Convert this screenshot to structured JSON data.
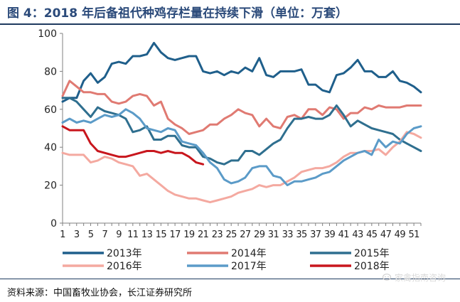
{
  "title": "图 4：2018 年后备祖代种鸡存栏量在持续下滑（单位：万套）",
  "source": "资料来源：中国畜牧业协会，长江证券研究所",
  "watermark": "家禽指南咨询",
  "chart_data": {
    "type": "line",
    "ylim": [
      0,
      100
    ],
    "yticks": [
      0,
      20,
      40,
      60,
      80,
      100
    ],
    "xlim": [
      1,
      52
    ],
    "xticks": [
      1,
      3,
      5,
      7,
      9,
      11,
      13,
      15,
      17,
      19,
      21,
      23,
      25,
      27,
      29,
      31,
      33,
      35,
      37,
      39,
      41,
      43,
      45,
      47,
      49,
      51
    ],
    "grid": false,
    "legend_position": "bottom",
    "series": [
      {
        "name": "2013年",
        "color": "#1f5f8b",
        "values": [
          64,
          66,
          66,
          75,
          79,
          74,
          77,
          84,
          85,
          84,
          88,
          88,
          89,
          95,
          90,
          87,
          86,
          87,
          88,
          88,
          80,
          79,
          80,
          78,
          80,
          79,
          82,
          80,
          87,
          78,
          77,
          80,
          80,
          80,
          81,
          73,
          73,
          70,
          69,
          78,
          79,
          82,
          86,
          80,
          80,
          77,
          77,
          80,
          75,
          74,
          72,
          69
        ]
      },
      {
        "name": "2014年",
        "color": "#e07a72",
        "values": [
          67,
          75,
          72,
          69,
          69,
          68,
          68,
          64,
          63,
          64,
          67,
          68,
          67,
          62,
          64,
          55,
          52,
          50,
          47,
          48,
          49,
          52,
          52,
          55,
          57,
          60,
          58,
          57,
          51,
          55,
          51,
          50,
          56,
          57,
          55,
          60,
          60,
          57,
          61,
          60,
          55,
          58,
          58,
          61,
          60,
          62,
          61,
          61,
          61,
          62,
          62,
          62
        ]
      },
      {
        "name": "2015年",
        "color": "#2f6f8f",
        "values": [
          66,
          66,
          64,
          60,
          56,
          61,
          59,
          58,
          57,
          55,
          48,
          49,
          51,
          44,
          44,
          46,
          46,
          41,
          40,
          40,
          35,
          34,
          32,
          31,
          33,
          33,
          38,
          38,
          36,
          39,
          42,
          44,
          50,
          55,
          55,
          56,
          55,
          55,
          57,
          62,
          57,
          51,
          54,
          52,
          50,
          49,
          48,
          47,
          44,
          42,
          40,
          38
        ]
      },
      {
        "name": "2016年",
        "color": "#f4a9a0",
        "values": [
          37,
          36,
          36,
          36,
          32,
          33,
          35,
          34,
          32,
          31,
          30,
          25,
          26,
          23,
          20,
          17,
          15,
          14,
          13,
          13,
          12,
          11,
          12,
          13,
          14,
          16,
          17,
          18,
          20,
          19,
          20,
          20,
          22,
          24,
          27,
          28,
          29,
          29,
          30,
          32,
          35,
          37,
          37,
          38,
          38,
          39,
          36,
          40,
          43,
          48,
          47,
          45
        ]
      },
      {
        "name": "2017年",
        "color": "#5b9bc8",
        "values": [
          53,
          55,
          53,
          54,
          53,
          55,
          57,
          56,
          57,
          60,
          58,
          55,
          50,
          49,
          48,
          50,
          49,
          43,
          42,
          41,
          37,
          32,
          29,
          23,
          21,
          22,
          24,
          29,
          30,
          30,
          25,
          24,
          20,
          22,
          22,
          23,
          24,
          26,
          27,
          30,
          33,
          35,
          37,
          38,
          36,
          44,
          40,
          43,
          42,
          47,
          50,
          51
        ]
      },
      {
        "name": "2018年",
        "color": "#c8161d",
        "values": [
          51,
          49,
          49,
          49,
          42,
          38,
          37,
          36,
          35,
          35,
          36,
          37,
          38,
          38,
          37,
          38,
          37,
          37,
          35,
          32,
          31
        ]
      }
    ]
  }
}
